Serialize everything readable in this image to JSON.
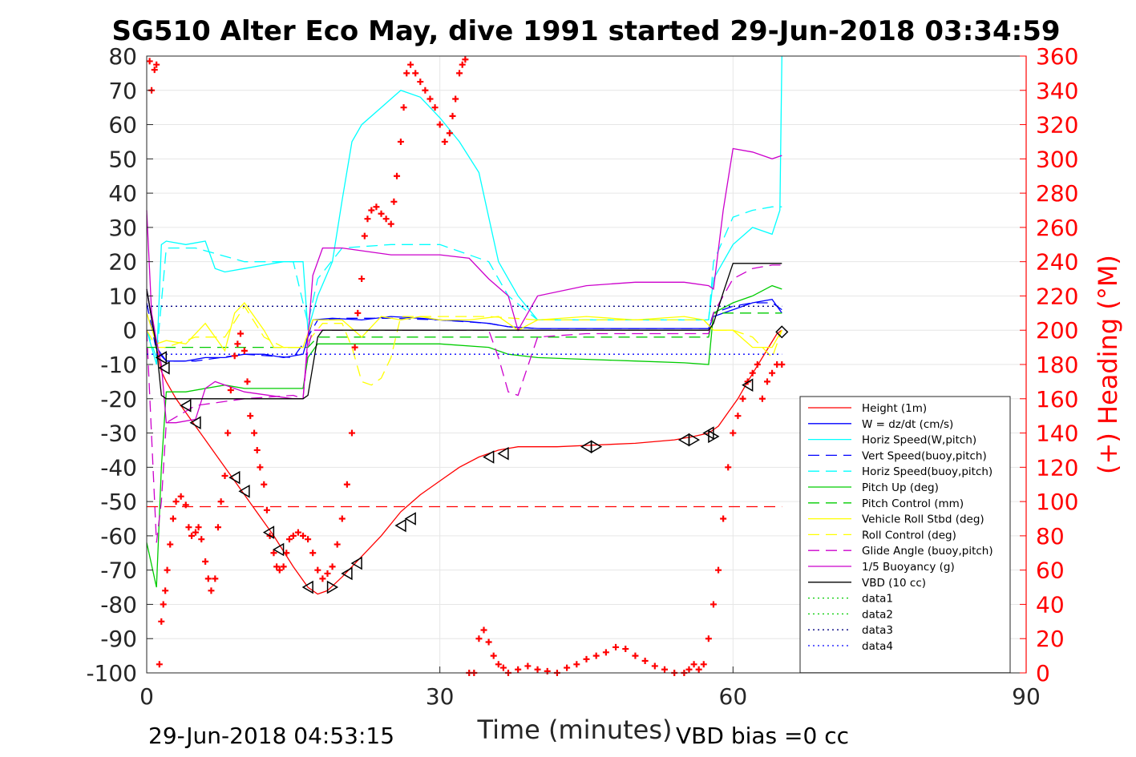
{
  "chart_data": {
    "type": "line",
    "title": "SG510 Alter Eco May, dive 1991 started 29-Jun-2018 03:34:59",
    "xlabel": "Time (minutes)",
    "ylabel_right": "(+) Heading (°M)",
    "footer_left": "29-Jun-2018 04:53:15",
    "footer_right": "VBD bias =0 cc",
    "xlim": [
      0,
      90
    ],
    "ylim": [
      -100,
      80
    ],
    "ylim_right": [
      0,
      360
    ],
    "xticks": [
      "0",
      "30",
      "60",
      "90"
    ],
    "yticks": [
      "80",
      "70",
      "60",
      "50",
      "40",
      "30",
      "20",
      "10",
      "0",
      "-10",
      "-20",
      "-30",
      "-40",
      "-50",
      "-60",
      "-70",
      "-80",
      "-90",
      "-100"
    ],
    "yticks_right": [
      "360",
      "340",
      "320",
      "300",
      "280",
      "260",
      "240",
      "220",
      "200",
      "180",
      "160",
      "140",
      "120",
      "100",
      "80",
      "60",
      "40",
      "20",
      "0"
    ],
    "grid": true,
    "legend_position": "lower-right",
    "series": [
      {
        "name": "Height (1m)",
        "color": "#ff0000",
        "style": "solid",
        "x": [
          0,
          1,
          1.5,
          2,
          3,
          5,
          7,
          9,
          11,
          13,
          15,
          16.5,
          17.5,
          18.5,
          20,
          22,
          24,
          26,
          28,
          30,
          32,
          34,
          36,
          38,
          42,
          46,
          50,
          54,
          56,
          57.5,
          58.5,
          59.5,
          60.5,
          61.5,
          63,
          64.5,
          65
        ],
        "y": [
          12,
          -5,
          -12,
          -15,
          -20,
          -28,
          -36,
          -44,
          -52,
          -60,
          -69,
          -75,
          -77,
          -76,
          -72,
          -66,
          -60,
          -53,
          -48,
          -44,
          -40,
          -37,
          -35,
          -34,
          -34,
          -33.5,
          -33,
          -32,
          -31,
          -30,
          -28,
          -24,
          -20,
          -15,
          -8,
          -1,
          0
        ]
      },
      {
        "name": "W = dz/dt (cm/s)",
        "color": "#0000ff",
        "style": "solid",
        "x": [
          0,
          1,
          2,
          4,
          6,
          8,
          10,
          12,
          14,
          16,
          16.5,
          17,
          19,
          22,
          25,
          28,
          30,
          33,
          35,
          37,
          40,
          45,
          50,
          55,
          57.5,
          58,
          60,
          62,
          64,
          65
        ],
        "y": [
          12,
          -5,
          -9,
          -9,
          -8,
          -8,
          -7,
          -7,
          -8,
          -7,
          -2,
          3,
          3.5,
          3,
          4,
          3.5,
          3,
          2.5,
          2,
          1,
          0.5,
          0.5,
          0.5,
          0.5,
          0.5,
          4,
          6,
          8,
          9,
          5
        ]
      },
      {
        "name": "Horiz Speed(W,pitch)",
        "color": "#00ffff",
        "style": "solid",
        "x": [
          0,
          1,
          1.5,
          2,
          4,
          6,
          7,
          8,
          10,
          12,
          14,
          16,
          16.5,
          17.5,
          19,
          20,
          21,
          22,
          24,
          26,
          28,
          30,
          32,
          34,
          35,
          36,
          38,
          40,
          45,
          50,
          55,
          57.5,
          58,
          60,
          62,
          64,
          64.8,
          65
        ],
        "y": [
          0,
          -10,
          25,
          26,
          25,
          26,
          18,
          17,
          18,
          19,
          20,
          20,
          0,
          10,
          20,
          38,
          55,
          60,
          65,
          70,
          68,
          62,
          55,
          46,
          33,
          20,
          10,
          3,
          3,
          3,
          3,
          3,
          15,
          25,
          30,
          28,
          35,
          80
        ]
      },
      {
        "name": "Vert Speed(buoy,pitch)",
        "color": "#0000ff",
        "style": "dashed",
        "x": [
          0,
          1,
          2,
          5,
          10,
          15,
          16.5,
          17.5,
          20,
          25,
          30,
          35,
          37,
          40,
          45,
          50,
          55,
          57.5,
          58,
          60,
          62,
          64,
          65
        ],
        "y": [
          8,
          -6,
          -9,
          -9,
          -7,
          -8,
          -2,
          3,
          3.5,
          3.5,
          3,
          2,
          1,
          0.5,
          0.5,
          0.5,
          0.5,
          0.5,
          5,
          7,
          8,
          8,
          6
        ]
      },
      {
        "name": "Horiz Speed(buoy,pitch)",
        "color": "#00ffff",
        "style": "dashed",
        "x": [
          0,
          1,
          2,
          5,
          10,
          15,
          16.5,
          17.5,
          20,
          25,
          30,
          35,
          37,
          40,
          45,
          50,
          55,
          57.5,
          58,
          60,
          62,
          64,
          65
        ],
        "y": [
          0,
          -8,
          24,
          24,
          20,
          20,
          2,
          15,
          24,
          25,
          25,
          20,
          10,
          3,
          3,
          3,
          3,
          3,
          20,
          33,
          35,
          36,
          36
        ]
      },
      {
        "name": "Pitch Up (deg)",
        "color": "#00cc00",
        "style": "solid",
        "x": [
          0,
          1,
          1.5,
          2,
          4,
          6,
          8,
          10,
          12,
          14,
          16,
          16.5,
          17.5,
          20,
          25,
          30,
          35,
          37,
          40,
          45,
          50,
          55,
          57.5,
          58,
          60,
          62,
          64,
          65
        ],
        "y": [
          -62,
          -75,
          -40,
          -18,
          -18,
          -17,
          -16,
          -17,
          -17,
          -17,
          -17,
          -8,
          -4,
          -4,
          -4,
          -4,
          -5,
          -7,
          -8,
          -8.5,
          -9,
          -9.5,
          -10,
          5,
          8,
          10,
          13,
          12
        ]
      },
      {
        "name": "Pitch Control (mm)",
        "color": "#00cc00",
        "style": "dashed",
        "x": [
          0,
          1,
          2,
          16,
          16.5,
          17.5,
          57.5,
          58,
          65
        ],
        "y": [
          -5,
          -5,
          -5,
          -5,
          -5,
          -2,
          -2,
          5,
          5
        ]
      },
      {
        "name": "Vehicle Roll Stbd (deg)",
        "color": "#ffff00",
        "style": "solid",
        "x": [
          0,
          1,
          2,
          4,
          6,
          8,
          9,
          10,
          12,
          13,
          16,
          17,
          20,
          22,
          24,
          26,
          28,
          30,
          33,
          36,
          38,
          40,
          45,
          50,
          55,
          57,
          58,
          60,
          62,
          64,
          65
        ],
        "y": [
          5,
          -4,
          -3,
          -4,
          2,
          -6,
          5,
          8,
          0,
          -5,
          -5,
          3,
          3,
          -2,
          4,
          3,
          4,
          3,
          3,
          4,
          0,
          3,
          4,
          3,
          4,
          3,
          0,
          0,
          -5,
          -5,
          0
        ]
      },
      {
        "name": "Roll Control (deg)",
        "color": "#ffff00",
        "style": "dashed",
        "x": [
          0,
          1,
          2,
          5,
          8,
          10,
          12,
          14,
          16,
          18,
          20,
          21,
          22,
          23,
          24,
          25,
          26,
          28,
          30,
          35,
          40,
          45,
          50,
          55,
          57,
          58,
          60,
          62,
          64,
          65
        ],
        "y": [
          0,
          -5,
          -5,
          -2,
          -2,
          7,
          -2,
          -5,
          -5,
          2,
          2,
          -5,
          -15,
          -16,
          -14,
          -8,
          4,
          4,
          4,
          4,
          3,
          3,
          3,
          3,
          3,
          0,
          0,
          -2,
          -8,
          0
        ]
      },
      {
        "name": "Glide Angle (buoy,pitch)",
        "color": "#cc00cc",
        "style": "dashed",
        "x": [
          0,
          1,
          1.5,
          2,
          5,
          10,
          15,
          16,
          16.5,
          17,
          20,
          25,
          30,
          35,
          36,
          37,
          38,
          40,
          45,
          50,
          55,
          57.5,
          58,
          60,
          62,
          64,
          65
        ],
        "y": [
          0,
          -62,
          -50,
          -27,
          -22,
          -20,
          -19,
          -20,
          -5,
          0,
          0,
          0,
          0,
          0,
          -8,
          -18,
          -19,
          -2,
          -1,
          -1,
          -1,
          -1,
          5,
          15,
          18,
          19,
          19
        ]
      },
      {
        "name": "1/5 Buoyancy (g)",
        "color": "#cc00cc",
        "style": "solid",
        "x": [
          0,
          0.5,
          1,
          1.5,
          2,
          3,
          5,
          6,
          7,
          10,
          15,
          16,
          17,
          18,
          20,
          25,
          30,
          33,
          35,
          37,
          38,
          40,
          45,
          50,
          55,
          57.5,
          58,
          59,
          60,
          62,
          64,
          65
        ],
        "y": [
          35,
          5,
          -3,
          -10,
          -27,
          -27,
          -26,
          -17,
          -15,
          -18,
          -20,
          -20,
          16,
          24,
          24,
          22,
          22,
          21,
          15,
          10,
          0,
          10,
          13,
          14,
          14,
          13,
          12,
          35,
          53,
          52,
          50,
          51
        ]
      },
      {
        "name": "VBD (10 cc)",
        "color": "#000000",
        "style": "solid",
        "x": [
          0,
          1,
          1.5,
          2,
          16,
          16.5,
          17.5,
          18,
          57.5,
          58,
          59,
          60,
          62,
          65
        ],
        "y": [
          12,
          -5,
          -19,
          -20,
          -20,
          -19,
          -2,
          0,
          0,
          2,
          11,
          19.5,
          19.5,
          19.5
        ]
      },
      {
        "name": "data1",
        "color": "#00cc00",
        "style": "dotted",
        "x": [],
        "y": []
      },
      {
        "name": "data2",
        "color": "#00cc00",
        "style": "dotted",
        "x": [],
        "y": []
      },
      {
        "name": "data3",
        "color": "#000080",
        "style": "dotted",
        "x": [
          0,
          65
        ],
        "y": [
          7,
          7
        ]
      },
      {
        "name": "data4",
        "color": "#0000ff",
        "style": "dotted",
        "x": [
          0,
          65
        ],
        "y": [
          -7,
          -7
        ]
      }
    ],
    "extra_lines": [
      {
        "color": "#ff0000",
        "style": "dashed",
        "x": [
          0,
          65
        ],
        "y": [
          -51.5,
          -51.5
        ]
      }
    ],
    "heading": {
      "axis": "right",
      "color": "#ff0000",
      "marker": "+",
      "x": [
        0.3,
        0.5,
        0.8,
        1.0,
        1.3,
        1.5,
        1.7,
        1.9,
        2.1,
        2.4,
        2.7,
        3.0,
        3.5,
        4.0,
        4.3,
        4.6,
        5.0,
        5.3,
        5.6,
        6.0,
        6.3,
        6.6,
        7.0,
        7.3,
        7.6,
        8.0,
        8.3,
        8.6,
        9.0,
        9.3,
        9.6,
        10.0,
        10.3,
        10.6,
        11.0,
        11.3,
        11.6,
        12.0,
        12.3,
        12.6,
        13.0,
        13.3,
        13.6,
        14.0,
        14.3,
        14.6,
        15.0,
        15.5,
        16.0,
        16.5,
        17.0,
        17.5,
        18.0,
        18.5,
        19.0,
        19.5,
        20.0,
        20.5,
        21.0,
        21.3,
        21.6,
        22.0,
        22.3,
        22.6,
        23.0,
        23.5,
        24.0,
        24.5,
        25.0,
        25.3,
        25.6,
        26.0,
        26.3,
        26.6,
        27.0,
        27.5,
        28.0,
        28.5,
        29.0,
        29.5,
        30.0,
        30.5,
        31.0,
        31.3,
        31.6,
        32.0,
        32.3,
        32.6,
        33.0,
        33.5,
        34.0,
        34.5,
        35.0,
        35.5,
        36.0,
        36.5,
        37.0,
        38.0,
        39.0,
        40.0,
        41.0,
        42.0,
        43.0,
        44.0,
        45.0,
        46.0,
        47.0,
        48.0,
        49.0,
        50.0,
        51.0,
        52.0,
        53.0,
        54.0,
        55.0,
        55.5,
        56.0,
        56.5,
        57.0,
        57.5,
        58.0,
        58.5,
        59.0,
        59.5,
        60.0,
        60.5,
        61.0,
        61.5,
        62.0,
        62.5,
        63.0,
        63.5,
        64.0,
        64.5,
        65.0
      ],
      "y": [
        357,
        340,
        352,
        355,
        5,
        30,
        40,
        48,
        60,
        75,
        90,
        100,
        103,
        98,
        85,
        80,
        82,
        85,
        78,
        65,
        55,
        48,
        55,
        85,
        100,
        115,
        140,
        165,
        185,
        192,
        198,
        188,
        170,
        150,
        140,
        130,
        120,
        110,
        95,
        80,
        70,
        62,
        60,
        62,
        70,
        78,
        80,
        82,
        80,
        78,
        70,
        60,
        55,
        58,
        62,
        75,
        90,
        110,
        140,
        190,
        210,
        230,
        255,
        265,
        270,
        272,
        268,
        265,
        262,
        275,
        290,
        310,
        330,
        350,
        355,
        350,
        345,
        340,
        335,
        330,
        320,
        310,
        315,
        325,
        335,
        350,
        355,
        358,
        0,
        0,
        20,
        25,
        18,
        10,
        5,
        3,
        0,
        2,
        4,
        2,
        1,
        0,
        3,
        5,
        8,
        10,
        12,
        15,
        14,
        10,
        7,
        4,
        2,
        0,
        0,
        2,
        5,
        2,
        5,
        20,
        40,
        60,
        90,
        120,
        140,
        150,
        160,
        170,
        175,
        180,
        160,
        170,
        175,
        180,
        180
      ]
    },
    "height_markers": {
      "x": [
        1.5,
        1.8,
        4,
        5,
        9,
        10,
        12.5,
        13.5,
        16.5,
        19,
        20.5,
        21.5,
        26,
        27,
        35,
        36.5,
        45,
        46,
        55,
        56,
        57.5,
        58,
        61.5,
        65
      ],
      "y": [
        -8,
        -11,
        -22,
        -27,
        -43,
        -47,
        -59,
        -64,
        -75,
        -75,
        -71,
        -68,
        -57,
        -55,
        -37,
        -36,
        -34,
        -34,
        -32,
        -32,
        -30,
        -31,
        -16,
        -0.5
      ],
      "dir": [
        "left",
        "left",
        "left",
        "left",
        "left",
        "left",
        "left",
        "left",
        "left",
        "right",
        "left",
        "left",
        "left",
        "left",
        "left",
        "left",
        "left",
        "right",
        "left",
        "right",
        "left",
        "right",
        "left",
        "diamond"
      ]
    }
  }
}
